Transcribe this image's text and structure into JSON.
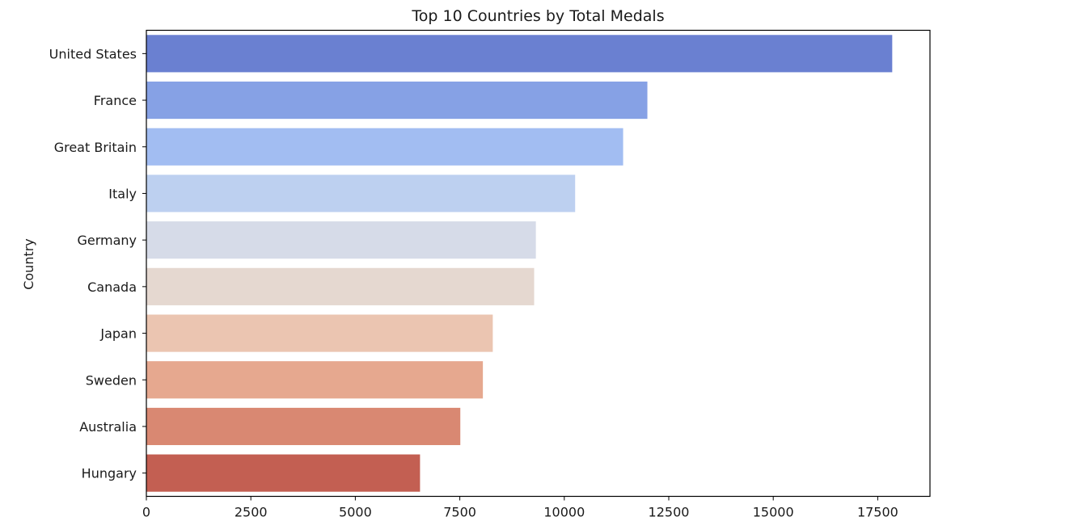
{
  "chart_data": {
    "type": "bar",
    "orientation": "horizontal",
    "title": "Top 10 Countries by Total Medals",
    "xlabel": "",
    "ylabel": "Country",
    "categories": [
      "United States",
      "France",
      "Great Britain",
      "Italy",
      "Germany",
      "Canada",
      "Japan",
      "Sweden",
      "Australia",
      "Hungary"
    ],
    "values": [
      17847,
      11988,
      11408,
      10260,
      9320,
      9279,
      8289,
      8052,
      7512,
      6548
    ],
    "colors": [
      "#6a80d1",
      "#86a1e5",
      "#a2bdf2",
      "#bdd0f0",
      "#d6dbe8",
      "#e5d8d0",
      "#ebc5b1",
      "#e6a88f",
      "#d98872",
      "#c35f52"
    ],
    "xlim": [
      0,
      18750
    ],
    "xticks": [
      0,
      2500,
      5000,
      7500,
      10000,
      12500,
      15000,
      17500
    ],
    "xtick_labels": [
      "0",
      "2500",
      "5000",
      "7500",
      "10000",
      "12500",
      "15000",
      "17500"
    ],
    "grid": false,
    "legend": "none"
  }
}
